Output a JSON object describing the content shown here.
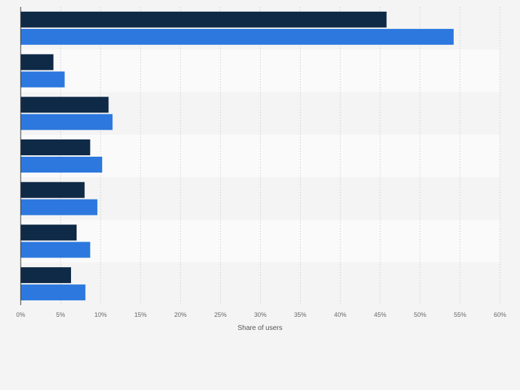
{
  "chart_data": {
    "type": "bar",
    "orientation": "horizontal",
    "categories": [
      "",
      "",
      "",
      "",
      "",
      "",
      ""
    ],
    "series": [
      {
        "name": "",
        "color": "#0f2a47",
        "values": [
          45.8,
          4.1,
          11.0,
          8.7,
          8.0,
          7.0,
          6.3
        ]
      },
      {
        "name": "",
        "color": "#2c78de",
        "values": [
          54.2,
          5.5,
          11.5,
          10.2,
          9.6,
          8.7,
          8.1
        ]
      }
    ],
    "title": "",
    "xlabel": "Share of users",
    "ylabel": "",
    "xlim": [
      0,
      60
    ],
    "xticks": [
      0,
      5,
      10,
      15,
      20,
      25,
      30,
      35,
      40,
      45,
      50,
      55,
      60
    ],
    "tick_suffix": "%",
    "grid": true
  }
}
